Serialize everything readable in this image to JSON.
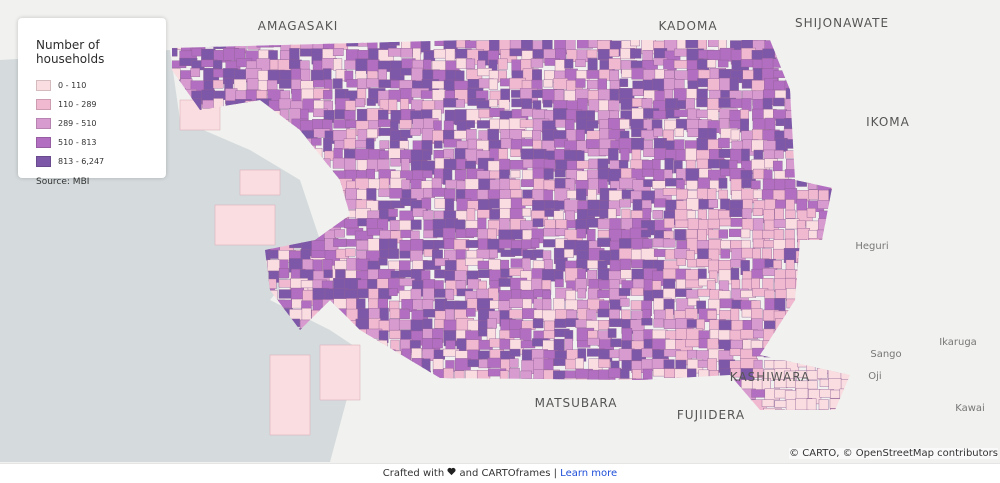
{
  "legend": {
    "title": "Number of households",
    "items": [
      {
        "label": "0 - 110",
        "color": "#f9dde0"
      },
      {
        "label": "110 - 289",
        "color": "#f0b9cf"
      },
      {
        "label": "289 - 510",
        "color": "#d89bd0"
      },
      {
        "label": "510 - 813",
        "color": "#b26ec0"
      },
      {
        "label": "813 - 6,247",
        "color": "#7d58a8"
      }
    ],
    "source": "Source: MBI"
  },
  "places": [
    "AMAGASAKI",
    "KADOMA",
    "SHIJONAWATE",
    "IKOMA",
    "Heguri",
    "Sango",
    "Ikaruga",
    "Oji",
    "Kawai",
    "MATSUBARA",
    "FUJIIDERA",
    "KASHIWARA"
  ],
  "attribution": "© CARTO, © OpenStreetMap contributors",
  "footer": {
    "prefix": "Crafted with",
    "middle": "and CARTOframes |",
    "link": "Learn more"
  }
}
